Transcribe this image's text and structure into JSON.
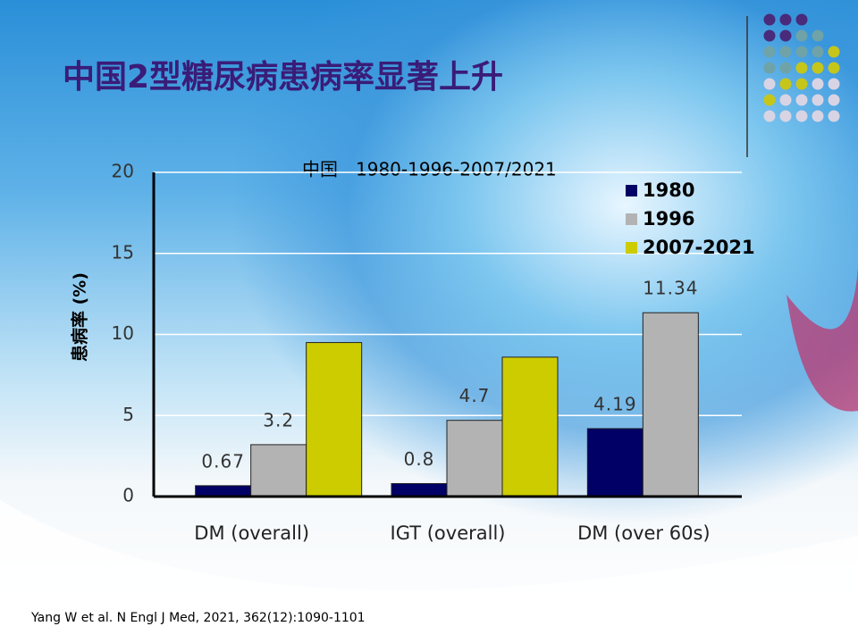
{
  "chart_data": {
    "type": "bar",
    "title": "中国2型糖尿病患病率显著上升",
    "subtitle": "中国　1980-1996-2007/2021",
    "y_label": "患病率 (%)",
    "categories": [
      "DM (overall)",
      "IGT (overall)",
      "DM (over 60s)"
    ],
    "series": [
      {
        "name": "1980",
        "color": "#000066",
        "values": [
          0.67,
          0.8,
          4.19
        ],
        "show_labels": true
      },
      {
        "name": "1996",
        "color": "#b3b3b3",
        "values": [
          3.2,
          4.7,
          11.34
        ],
        "show_labels": true
      },
      {
        "name": "2007-2021",
        "color": "#cccc00",
        "values": [
          9.5,
          8.6,
          null
        ],
        "show_labels": false
      }
    ],
    "ylim": [
      0,
      20
    ],
    "yticks": [
      0,
      5,
      10,
      15,
      20
    ],
    "grid": true,
    "legend": "top-right",
    "footnote": "Yang W et al. N Engl J Med, 2021, 362(12):1090-1101"
  }
}
